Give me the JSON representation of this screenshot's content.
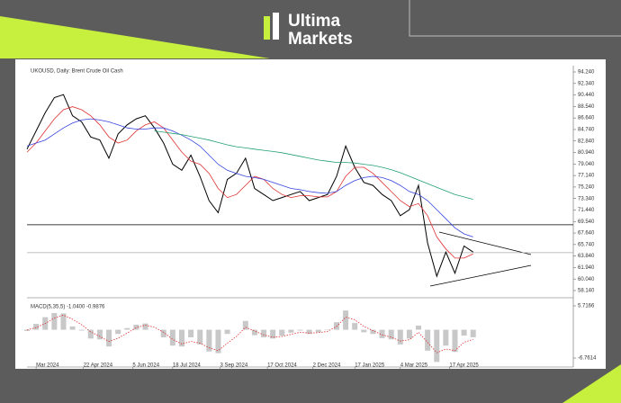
{
  "brand": {
    "line1": "Ultima",
    "line2": "Markets"
  },
  "chart_data": [
    {
      "type": "line",
      "title": "UKOUSD, Daily:  Brent Crude Oil Cash",
      "x": [
        0,
        5,
        10,
        15,
        20,
        25,
        30,
        35,
        40,
        45,
        50,
        55,
        60,
        65,
        70,
        75,
        80,
        85,
        90,
        95,
        100,
        105,
        110,
        115,
        120,
        125,
        130,
        135,
        140,
        145,
        150,
        155,
        160,
        165,
        170,
        175,
        180,
        185,
        190,
        195,
        200,
        205,
        210,
        215,
        220,
        225,
        230,
        235,
        240,
        245
      ],
      "xlim": [
        0,
        300
      ],
      "series": [
        {
          "color": "#000000",
          "values": [
            81.5,
            84.5,
            87.5,
            90,
            90.5,
            87,
            86,
            83.5,
            83,
            80,
            84,
            85.5,
            86.5,
            87,
            85,
            82.5,
            79,
            78,
            80.5,
            77,
            73,
            71,
            76.5,
            77.5,
            80,
            75,
            74,
            73,
            73.5,
            74,
            74.5,
            73,
            73.5,
            74,
            77,
            82,
            78.5,
            76,
            75.5,
            74,
            73,
            70.5,
            71.5,
            75.5,
            66,
            60.5,
            64.5,
            61,
            65.5,
            64.5
          ]
        },
        {
          "color": "#e03030",
          "values": [
            81,
            82.5,
            84.5,
            86.5,
            88,
            88.5,
            88,
            87,
            85.5,
            83.5,
            82.5,
            83,
            84.5,
            85.5,
            86,
            85,
            83,
            81,
            79.5,
            79,
            77.5,
            75,
            73.5,
            74,
            75.5,
            77,
            76.5,
            75,
            74,
            73.5,
            73.8,
            73.8,
            73.6,
            73.6,
            74.5,
            77,
            78.5,
            78.5,
            77.5,
            76,
            74.5,
            73,
            72,
            72.5,
            70.5,
            67,
            65,
            63.5,
            63.5,
            64.2
          ]
        },
        {
          "color": "#3344dd",
          "values": [
            82,
            82.5,
            83,
            84,
            85,
            85.8,
            86.3,
            86.5,
            86.3,
            86,
            85.5,
            85,
            84.8,
            84.8,
            85,
            85,
            84.5,
            83.8,
            83,
            82,
            80.5,
            79,
            78,
            77.5,
            77,
            76.8,
            76.5,
            76,
            75.5,
            75,
            74.8,
            74.5,
            74.3,
            74.2,
            74.5,
            75.5,
            76.3,
            76.8,
            77,
            76.8,
            76.3,
            75.5,
            74.5,
            74,
            73,
            71.5,
            70,
            68.5,
            67.5,
            67
          ]
        },
        {
          "color": "#22a070",
          "values": [
            null,
            null,
            null,
            null,
            null,
            null,
            null,
            null,
            null,
            null,
            null,
            null,
            null,
            null,
            84.5,
            84.3,
            84.1,
            83.9,
            83.6,
            83.3,
            83,
            82.6,
            82.2,
            81.9,
            81.7,
            81.5,
            81.3,
            81.1,
            80.9,
            80.6,
            80.3,
            80,
            79.7,
            79.5,
            79.3,
            79.3,
            79.2,
            79,
            78.8,
            78.5,
            78.1,
            77.6,
            77,
            76.4,
            75.8,
            75.2,
            74.6,
            74,
            73.6,
            73.2
          ]
        }
      ],
      "ylim": [
        57.1,
        95.28
      ],
      "yticks": [
        {
          "value": 94.24,
          "label": "94.240"
        },
        {
          "value": 92.34,
          "label": "92.340"
        },
        {
          "value": 90.44,
          "label": "90.440"
        },
        {
          "value": 88.54,
          "label": "88.540"
        },
        {
          "value": 86.64,
          "label": "86.640"
        },
        {
          "value": 84.74,
          "label": "84.740"
        },
        {
          "value": 82.84,
          "label": "82.840"
        },
        {
          "value": 80.94,
          "label": "80.940"
        },
        {
          "value": 79.04,
          "label": "79.040"
        },
        {
          "value": 77.14,
          "label": "77.140"
        },
        {
          "value": 75.24,
          "label": "75.240"
        },
        {
          "value": 73.34,
          "label": "73.340"
        },
        {
          "value": 71.44,
          "label": "71.440"
        },
        {
          "value": 69.54,
          "label": "69.540"
        },
        {
          "value": 67.64,
          "label": "67.640"
        },
        {
          "value": 65.74,
          "label": "65.740"
        },
        {
          "value": 63.84,
          "label": "63.840"
        },
        {
          "value": 61.94,
          "label": "61.940"
        },
        {
          "value": 60.04,
          "label": "60.040"
        },
        {
          "value": 58.14,
          "label": "58.140"
        }
      ],
      "levels": [
        69,
        64.4
      ],
      "level_colors": [
        "#000000",
        "#aaaaaa"
      ]
    },
    {
      "type": "bar",
      "title": "MACD(5,35,5) -1.0400 -0.9876",
      "x": [
        0,
        5,
        10,
        15,
        20,
        25,
        30,
        35,
        40,
        45,
        50,
        55,
        60,
        65,
        70,
        75,
        80,
        85,
        90,
        95,
        100,
        105,
        110,
        115,
        120,
        125,
        130,
        135,
        140,
        145,
        150,
        155,
        160,
        165,
        170,
        175,
        180,
        185,
        190,
        195,
        200,
        205,
        210,
        215,
        220,
        225,
        230,
        235,
        240,
        245
      ],
      "xlim": [
        0,
        300
      ],
      "xticks": [
        {
          "value": 5,
          "label": "Mar 2024"
        },
        {
          "value": 31,
          "label": "22 Apr 2024"
        },
        {
          "value": 58,
          "label": "5 Jun 2024"
        },
        {
          "value": 80,
          "label": "18 Jul 2024"
        },
        {
          "value": 106,
          "label": "3 Sep 2024"
        },
        {
          "value": 132,
          "label": "17 Oct 2024"
        },
        {
          "value": 157,
          "label": "2 Dec 2024"
        },
        {
          "value": 180,
          "label": "17 Jan 2025"
        },
        {
          "value": 205,
          "label": "4 Mar 2025"
        },
        {
          "value": 232,
          "label": "17 Apr 2025"
        }
      ],
      "series": [
        {
          "color": "#c8c8c8",
          "values": [
            -0.3,
            1.4,
            3,
            4,
            3.9,
            0.8,
            -0.2,
            -2.1,
            -2.3,
            -4,
            -1,
            0.4,
            1.2,
            1.5,
            0,
            -1.8,
            -3.8,
            -4,
            -1.8,
            -3.5,
            -5.2,
            -5.6,
            -1,
            0,
            2.1,
            -1.3,
            -1.8,
            -2.1,
            -1.4,
            -0.7,
            -0.2,
            -1,
            -0.6,
            -0.1,
            1.8,
            4.6,
            1.6,
            -0.6,
            -1,
            -2,
            -2.3,
            -3.5,
            -2.1,
            1,
            -5,
            -7.7,
            -3.8,
            -5.3,
            -1.4,
            -1.8
          ]
        },
        {
          "color": "#e03030",
          "values": [
            0,
            0.5,
            1.5,
            2.8,
            3.5,
            2.5,
            1.2,
            -0.5,
            -1.6,
            -2.8,
            -2,
            -0.8,
            0.5,
            1.1,
            0.6,
            -0.6,
            -2.3,
            -3.4,
            -2.8,
            -3.2,
            -4.3,
            -5,
            -3.2,
            -1.6,
            0.6,
            -0.3,
            -1.2,
            -1.8,
            -1.6,
            -1.1,
            -0.6,
            -0.8,
            -0.7,
            -0.4,
            0.8,
            3,
            2.4,
            0.8,
            -0.2,
            -1.2,
            -1.8,
            -2.7,
            -2.4,
            -0.6,
            -3,
            -5.5,
            -4.6,
            -5,
            -3,
            -2.3
          ]
        }
      ],
      "ylim": [
        -8.91,
        7.22
      ],
      "yticks": [
        5.7166,
        -6.7614
      ]
    }
  ]
}
